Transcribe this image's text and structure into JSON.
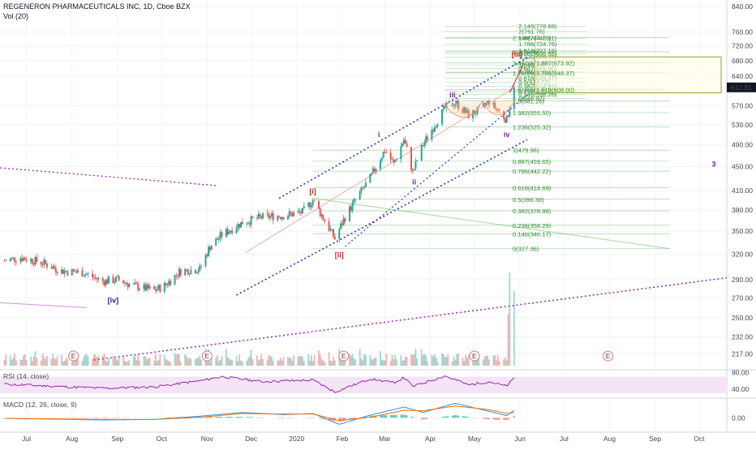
{
  "header": {
    "title": "REGENERON PHARMACEUTICALS INC, 1D, Cboe BZX",
    "volume_label": "Vol (20)"
  },
  "price_tag": "612.81",
  "colors": {
    "up": "#26a69a",
    "down": "#ef5350",
    "fib": "#4caf50",
    "channel": "#2a2fd6",
    "trend": "#9c27b0",
    "rsi": "#9c27b0",
    "macd": "#2196f3",
    "signal": "#ff6d00",
    "wave_red": "#c62828",
    "wave_purple": "#7b1fa2",
    "wave_blue": "#1a237e"
  },
  "chart_data": [
    {
      "type": "candlestick",
      "title": "REGENERON PHARMACEUTICALS INC, 1D, Cboe BZX",
      "x_labels": [
        "Jul",
        "Aug",
        "Sep",
        "Oct",
        "Nov",
        "Dec",
        "2020",
        "Feb",
        "Mar",
        "Apr",
        "May",
        "Jun",
        "Jul",
        "Aug",
        "Sep",
        "Oct"
      ],
      "y_ticks": [
        "840.00",
        "760.00",
        "720.00",
        "680.00",
        "640.00",
        "570.00",
        "530.00",
        "490.00",
        "450.00",
        "410.00",
        "380.00",
        "350.00",
        "320.00",
        "290.00",
        "270.00",
        "250.00",
        "232.00",
        "217.00"
      ],
      "y_scale": "log",
      "ylim": [
        210,
        845
      ],
      "last_price": 612.81,
      "close_path": [
        [
          "2019-06-20",
          312
        ],
        [
          "2019-07-01",
          316
        ],
        [
          "2019-07-15",
          310
        ],
        [
          "2019-07-29",
          300
        ],
        [
          "2019-08-12",
          298
        ],
        [
          "2019-08-26",
          288
        ],
        [
          "2019-09-05",
          290
        ],
        [
          "2019-09-16",
          283
        ],
        [
          "2019-09-30",
          278
        ],
        [
          "2019-10-07",
          283
        ],
        [
          "2019-10-18",
          300
        ],
        [
          "2019-10-31",
          302
        ],
        [
          "2019-11-07",
          330
        ],
        [
          "2019-11-15",
          345
        ],
        [
          "2019-11-29",
          362
        ],
        [
          "2019-12-13",
          370
        ],
        [
          "2019-12-27",
          372
        ],
        [
          "2020-01-09",
          377
        ],
        [
          "2020-01-16",
          395
        ],
        [
          "2020-01-24",
          365
        ],
        [
          "2020-01-31",
          340
        ],
        [
          "2020-02-07",
          370
        ],
        [
          "2020-02-14",
          395
        ],
        [
          "2020-02-24",
          430
        ],
        [
          "2020-03-05",
          480
        ],
        [
          "2020-03-11",
          455
        ],
        [
          "2020-03-18",
          500
        ],
        [
          "2020-03-24",
          440
        ],
        [
          "2020-03-31",
          490
        ],
        [
          "2020-04-08",
          530
        ],
        [
          "2020-04-15",
          565
        ],
        [
          "2020-04-22",
          578
        ],
        [
          "2020-05-01",
          550
        ],
        [
          "2020-05-08",
          560
        ],
        [
          "2020-05-15",
          580
        ],
        [
          "2020-05-21",
          560
        ],
        [
          "2020-05-27",
          540
        ],
        [
          "2020-06-01",
          612.81
        ]
      ],
      "wave_labels": [
        {
          "text": "[iv]",
          "date": "2019-09-02",
          "price": 265,
          "color": "wave_blue"
        },
        {
          "text": "[i]",
          "date": "2020-01-16",
          "price": 405,
          "color": "wave_red"
        },
        {
          "text": "[ii]",
          "date": "2020-02-03",
          "price": 316,
          "color": "wave_red"
        },
        {
          "text": "i",
          "date": "2020-03-01",
          "price": 505,
          "color": "wave_purple"
        },
        {
          "text": "ii",
          "date": "2020-03-25",
          "price": 420,
          "color": "wave_purple"
        },
        {
          "text": "iii",
          "date": "2020-04-20",
          "price": 590,
          "color": "wave_purple"
        },
        {
          "text": "iv",
          "date": "2020-05-27",
          "price": 505,
          "color": "wave_purple"
        },
        {
          "text": "[iii]",
          "date": "2020-06-03",
          "price": 690,
          "color": "wave_red"
        },
        {
          "text": "3",
          "date": "2020-10-15",
          "price": 450,
          "color": "wave_purple"
        }
      ],
      "fib_upper": [
        {
          "label": "2.146(776.68)",
          "value": 776.68
        },
        {
          "label": "2(761.76)",
          "value": 761.76
        },
        {
          "label": "1.887(742.11)",
          "value": 742.11
        },
        {
          "label": "1.786(724.76)",
          "value": 724.76
        },
        {
          "label": "1.618(707.16)",
          "value": 707.16
        },
        {
          "label": "1.382(698.88)",
          "value": 698.88
        },
        {
          "label": "1.236(689.71)",
          "value": 689.71
        },
        {
          "label": "1(668.79)",
          "value": 668.79
        },
        {
          "label": "0.887(659.00)",
          "value": 659.0
        },
        {
          "label": "0.786(650.15)",
          "value": 650.15
        },
        {
          "label": "0.618(635.27)",
          "value": 635.27
        },
        {
          "label": "0.5(624.72)",
          "value": 624.72
        },
        {
          "label": "0.382(614.87)",
          "value": 614.87
        },
        {
          "label": "0.236(603.07)",
          "value": 603.07
        },
        {
          "label": "0.146(596.26)",
          "value": 596.26
        },
        {
          "label": "0(586.97)",
          "value": 586.97
        }
      ],
      "fib_upper_ext": [
        {
          "label": "2.146(744.13)",
          "value": 744.13
        },
        {
          "label": "2(703.69)",
          "value": 703.69
        },
        {
          "label": "1.887(673.92)",
          "value": 673.92
        },
        {
          "label": "1.786(648.37)",
          "value": 648.37
        },
        {
          "label": "1.618(608.00)",
          "value": 608.0
        },
        {
          "label": "1.5(581.16)",
          "value": 581.16
        },
        {
          "label": "1.382(555.50)",
          "value": 555.5
        },
        {
          "label": "1.236(525.32)",
          "value": 525.32
        }
      ],
      "fib_lower": [
        {
          "label": "1(479.96)",
          "value": 479.96
        },
        {
          "label": "0.887(459.65)",
          "value": 459.65
        },
        {
          "label": "0.786(442.22)",
          "value": 442.22
        },
        {
          "label": "0.618(414.69)",
          "value": 414.69
        },
        {
          "label": "0.5(396.38)",
          "value": 396.38
        },
        {
          "label": "0.382(378.88)",
          "value": 378.88
        },
        {
          "label": "0.236(358.29)",
          "value": 358.29
        },
        {
          "label": "0.146(346.17)",
          "value": 346.17
        },
        {
          "label": "0(327.36)",
          "value": 327.36
        }
      ],
      "earnings_marker": "E",
      "earnings_dates": [
        "2019-08-06",
        "2019-11-05",
        "2020-02-06",
        "2020-05-05",
        "2020-08-04"
      ],
      "volume": {
        "label": "Vol (20)",
        "spike_dates": [
          "2020-05-28",
          "2020-05-29",
          "2020-06-01"
        ],
        "spike_relative": [
          0.55,
          1.0,
          0.8
        ]
      }
    },
    {
      "type": "line",
      "title": "RSI (14, close)",
      "y_ticks": [
        "80.00",
        "40.00"
      ],
      "band": [
        30,
        70
      ],
      "ylim": [
        20,
        85
      ],
      "series": [
        {
          "values_path": [
            [
              "2019-06-20",
              52
            ],
            [
              "2019-07-15",
              48
            ],
            [
              "2019-08-26",
              42
            ],
            [
              "2019-09-30",
              45
            ],
            [
              "2019-10-31",
              60
            ],
            [
              "2019-11-15",
              70
            ],
            [
              "2019-12-13",
              58
            ],
            [
              "2020-01-16",
              62
            ],
            [
              "2020-01-31",
              33
            ],
            [
              "2020-02-24",
              65
            ],
            [
              "2020-03-11",
              55
            ],
            [
              "2020-03-18",
              68
            ],
            [
              "2020-03-24",
              46
            ],
            [
              "2020-04-15",
              72
            ],
            [
              "2020-05-01",
              50
            ],
            [
              "2020-05-15",
              58
            ],
            [
              "2020-05-27",
              47
            ],
            [
              "2020-06-01",
              66
            ]
          ]
        }
      ]
    },
    {
      "type": "line",
      "title": "MACD (12, 26, close, 9)",
      "y_ticks": [
        "0.00"
      ],
      "ylim": [
        -25,
        35
      ],
      "series": [
        {
          "name": "MACD",
          "values_path": [
            [
              "2019-06-20",
              -1
            ],
            [
              "2019-08-26",
              -4
            ],
            [
              "2019-09-30",
              -3
            ],
            [
              "2019-10-31",
              3
            ],
            [
              "2019-11-29",
              10
            ],
            [
              "2019-12-27",
              6
            ],
            [
              "2020-01-16",
              8
            ],
            [
              "2020-02-03",
              -12
            ],
            [
              "2020-02-24",
              5
            ],
            [
              "2020-03-18",
              20
            ],
            [
              "2020-03-31",
              10
            ],
            [
              "2020-04-22",
              27
            ],
            [
              "2020-05-15",
              12
            ],
            [
              "2020-05-27",
              4
            ],
            [
              "2020-06-01",
              14
            ]
          ]
        },
        {
          "name": "Signal",
          "values_path": [
            [
              "2019-06-20",
              -1
            ],
            [
              "2019-08-26",
              -3
            ],
            [
              "2019-09-30",
              -3
            ],
            [
              "2019-10-31",
              1
            ],
            [
              "2019-11-29",
              8
            ],
            [
              "2019-12-27",
              7
            ],
            [
              "2020-01-16",
              7
            ],
            [
              "2020-02-03",
              -5
            ],
            [
              "2020-02-24",
              1
            ],
            [
              "2020-03-18",
              14
            ],
            [
              "2020-03-31",
              13
            ],
            [
              "2020-04-22",
              22
            ],
            [
              "2020-05-15",
              15
            ],
            [
              "2020-05-27",
              8
            ],
            [
              "2020-06-01",
              10
            ]
          ]
        }
      ]
    }
  ]
}
